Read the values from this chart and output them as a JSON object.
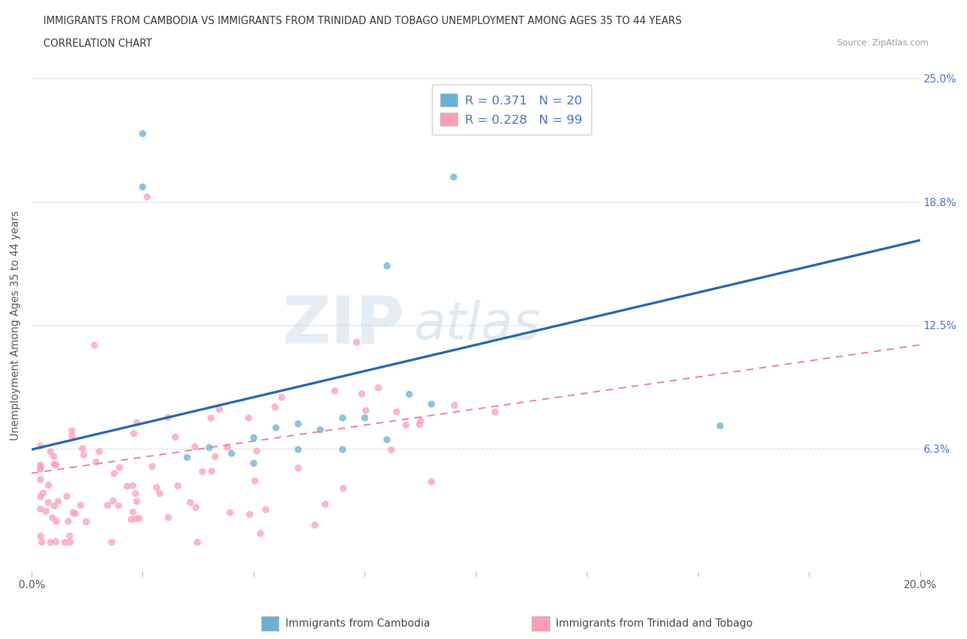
{
  "title_line1": "IMMIGRANTS FROM CAMBODIA VS IMMIGRANTS FROM TRINIDAD AND TOBAGO UNEMPLOYMENT AMONG AGES 35 TO 44 YEARS",
  "title_line2": "CORRELATION CHART",
  "source_text": "Source: ZipAtlas.com",
  "ylabel": "Unemployment Among Ages 35 to 44 years",
  "xlim": [
    0.0,
    0.2
  ],
  "ylim": [
    0.0,
    0.25
  ],
  "ytick_vals": [
    0.0,
    0.0625,
    0.125,
    0.1875,
    0.25
  ],
  "ytick_labels": [
    "",
    "6.3%",
    "12.5%",
    "18.8%",
    "25.0%"
  ],
  "color_cambodia": "#6baed6",
  "color_tt": "#fa9fb5",
  "line_color_cambodia": "#2166ac",
  "line_color_tt": "#e87fa0",
  "R_cambodia": 0.371,
  "N_cambodia": 20,
  "R_tt": 0.228,
  "N_tt": 99,
  "grid_color": "#cccccc",
  "background_color": "#ffffff",
  "scatter_alpha": 0.75,
  "scatter_size": 55,
  "cambodia_line_start_y": 0.062,
  "cambodia_line_end_y": 0.168,
  "tt_line_start_y": 0.05,
  "tt_line_end_y": 0.115
}
